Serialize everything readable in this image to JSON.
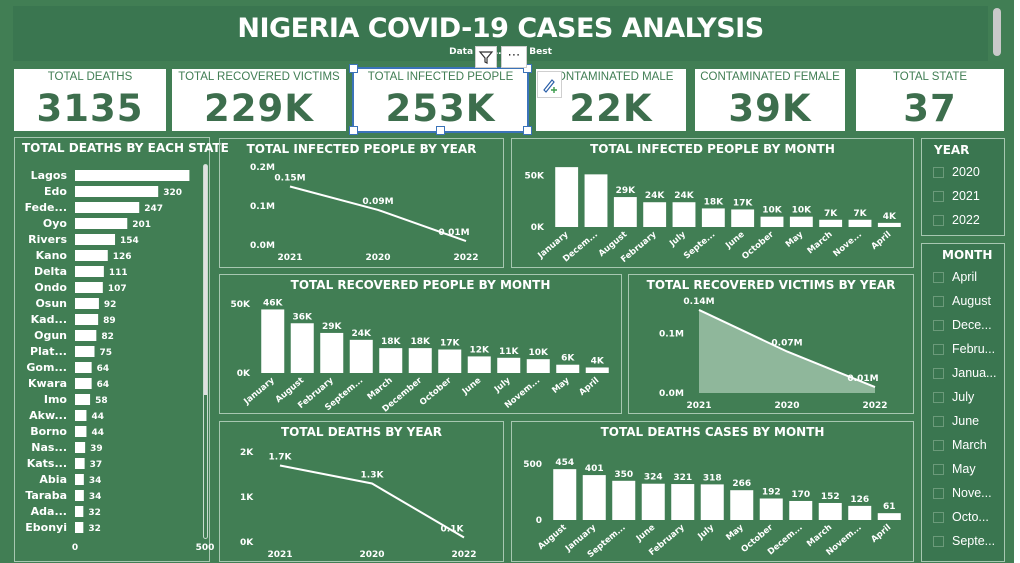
{
  "header": {
    "title": "NIGERIA COVID-19 CASES ANALYSIS",
    "subtitle": "Data A… …kuni Best"
  },
  "kpis": [
    {
      "label": "TOTAL DEATHS",
      "value": "3135"
    },
    {
      "label": "TOTAL RECOVERED VICTIMS",
      "value": "229K"
    },
    {
      "label": "TOTAL INFECTED PEOPLE",
      "value": "253K"
    },
    {
      "label": "CONTAMINATED MALE",
      "value": "22K"
    },
    {
      "label": "CONTAMINATED FEMALE",
      "value": "39K"
    },
    {
      "label": "TOTAL STATE",
      "value": "37"
    }
  ],
  "toolbar": {
    "filter_icon": "filter-icon",
    "more_icon": "more-options-icon",
    "more_label": "⋯",
    "format_icon": "format-paint-icon"
  },
  "slicers": {
    "year": {
      "title": "YEAR",
      "items": [
        "2020",
        "2021",
        "2022"
      ]
    },
    "month": {
      "title": "MONTH",
      "items": [
        "April",
        "August",
        "Dece...",
        "Febru...",
        "Janua...",
        "July",
        "June",
        "March",
        "May",
        "Nove...",
        "Octo...",
        "Septe..."
      ]
    }
  },
  "chart_data": [
    {
      "type": "bar",
      "orientation": "horizontal",
      "title": "TOTAL DEATHS BY EACH STATE",
      "categories": [
        "Lagos",
        "Edo",
        "Fede...",
        "Oyo",
        "Rivers",
        "Kano",
        "Delta",
        "Ondo",
        "Osun",
        "Kad...",
        "Ogun",
        "Plat...",
        "Gom...",
        "Kwara",
        "Imo",
        "Akw...",
        "Borno",
        "Nas...",
        "Kats...",
        "Abia",
        "Taraba",
        "Ada...",
        "Ebonyi"
      ],
      "values": [
        440,
        320,
        247,
        201,
        154,
        126,
        111,
        107,
        92,
        89,
        82,
        75,
        64,
        64,
        58,
        44,
        44,
        39,
        37,
        34,
        34,
        32,
        32
      ],
      "data_labels": [
        "",
        "320",
        "247",
        "201",
        "154",
        "126",
        "111",
        "107",
        "92",
        "89",
        "82",
        "75",
        "64",
        "64",
        "58",
        "44",
        "44",
        "39",
        "37",
        "34",
        "34",
        "32",
        "32"
      ],
      "xticks": [
        "0",
        "500"
      ],
      "xlim": [
        0,
        500
      ]
    },
    {
      "type": "line",
      "title": "TOTAL INFECTED PEOPLE BY YEAR",
      "categories": [
        "2021",
        "2020",
        "2022"
      ],
      "values": [
        150000,
        90000,
        10000
      ],
      "data_labels": [
        "0.15M",
        "0.09M",
        "0.01M"
      ],
      "yticks": [
        "0.0M",
        "0.1M",
        "0.2M"
      ],
      "ylim": [
        0,
        200000
      ]
    },
    {
      "type": "bar",
      "title": "TOTAL INFECTED PEOPLE BY MONTH",
      "categories": [
        "January",
        "Decem...",
        "August",
        "February",
        "July",
        "Septe...",
        "June",
        "October",
        "May",
        "March",
        "Nove...",
        "April"
      ],
      "values": [
        58000,
        51000,
        29000,
        24000,
        24000,
        18000,
        17000,
        10000,
        10000,
        7000,
        7000,
        4000
      ],
      "data_labels": [
        "",
        "",
        "29K",
        "24K",
        "24K",
        "18K",
        "17K",
        "10K",
        "10K",
        "7K",
        "7K",
        "4K"
      ],
      "yticks": [
        "0K",
        "50K"
      ],
      "ylim": [
        0,
        62000
      ]
    },
    {
      "type": "bar",
      "title": "TOTAL RECOVERED PEOPLE BY MONTH",
      "categories": [
        "January",
        "August",
        "February",
        "Septem...",
        "March",
        "December",
        "October",
        "June",
        "July",
        "Novem...",
        "May",
        "April"
      ],
      "values": [
        46000,
        36000,
        29000,
        24000,
        18000,
        18000,
        17000,
        12000,
        11000,
        10000,
        6000,
        4000
      ],
      "data_labels": [
        "46K",
        "36K",
        "29K",
        "24K",
        "18K",
        "18K",
        "17K",
        "12K",
        "11K",
        "10K",
        "6K",
        "4K"
      ],
      "yticks": [
        "0K",
        "50K"
      ],
      "ylim": [
        0,
        55000
      ]
    },
    {
      "type": "area",
      "title": "TOTAL RECOVERED VICTIMS BY YEAR",
      "categories": [
        "2021",
        "2020",
        "2022"
      ],
      "values": [
        140000,
        70000,
        10000
      ],
      "data_labels": [
        "0.14M",
        "0.07M",
        "0.01M"
      ],
      "yticks": [
        "0.0M",
        "0.1M"
      ],
      "ylim": [
        0,
        145000
      ]
    },
    {
      "type": "line",
      "title": "TOTAL DEATHS BY YEAR",
      "categories": [
        "2021",
        "2020",
        "2022"
      ],
      "values": [
        1700,
        1300,
        100
      ],
      "data_labels": [
        "1.7K",
        "1.3K",
        "0.1K"
      ],
      "yticks": [
        "0K",
        "1K",
        "2K"
      ],
      "ylim": [
        0,
        2000
      ]
    },
    {
      "type": "bar",
      "title": "TOTAL DEATHS CASES BY MONTH",
      "categories": [
        "August",
        "January",
        "Septem...",
        "June",
        "February",
        "July",
        "May",
        "October",
        "Decem...",
        "March",
        "Novem...",
        "April"
      ],
      "values": [
        454,
        401,
        350,
        324,
        321,
        318,
        266,
        192,
        170,
        152,
        126,
        61
      ],
      "data_labels": [
        "454",
        "401",
        "350",
        "324",
        "321",
        "318",
        "266",
        "192",
        "170",
        "152",
        "126",
        "61"
      ],
      "yticks": [
        "0",
        "500"
      ],
      "ylim": [
        0,
        500
      ]
    }
  ]
}
